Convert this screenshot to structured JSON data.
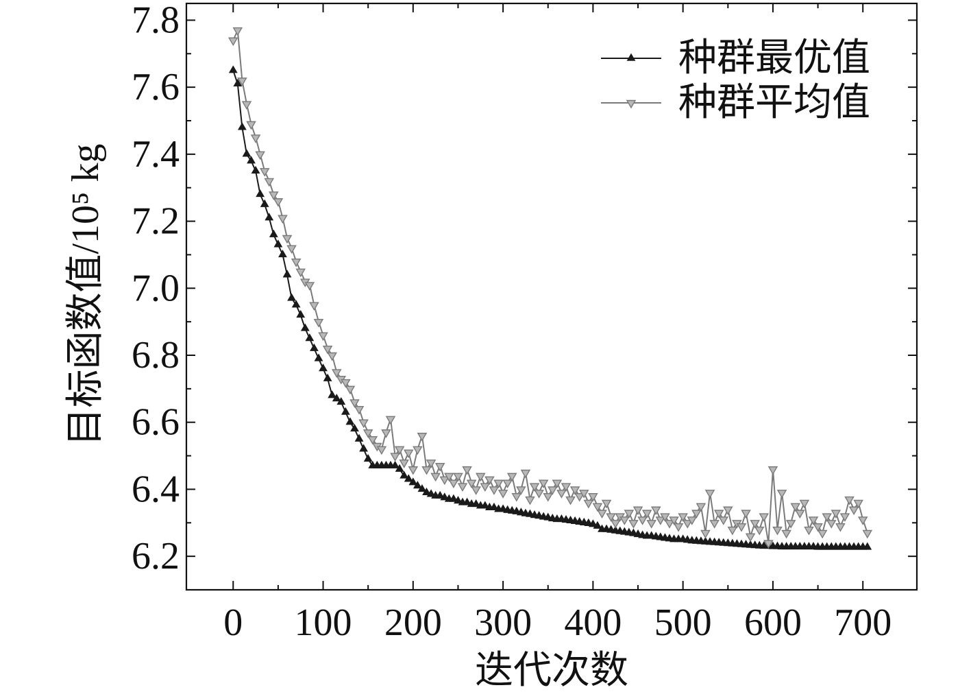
{
  "chart_data": {
    "type": "line",
    "xlabel": "迭代次数",
    "ylabel": "目标函数值/10⁵ kg",
    "xlim": [
      -52,
      760
    ],
    "ylim": [
      6.1,
      7.85
    ],
    "xticks": [
      "0",
      "100",
      "200",
      "300",
      "400",
      "500",
      "600",
      "700"
    ],
    "yticks": [
      "6.2",
      "6.4",
      "6.6",
      "6.8",
      "7.0",
      "7.2",
      "7.4",
      "7.6",
      "7.8"
    ],
    "grid": false,
    "legend": "top-right",
    "x": [
      0,
      5,
      10,
      15,
      20,
      25,
      30,
      35,
      40,
      45,
      50,
      55,
      60,
      65,
      70,
      75,
      80,
      85,
      90,
      95,
      100,
      105,
      110,
      115,
      120,
      125,
      130,
      135,
      140,
      145,
      150,
      155,
      160,
      165,
      170,
      175,
      180,
      185,
      190,
      195,
      200,
      205,
      210,
      215,
      220,
      225,
      230,
      235,
      240,
      245,
      250,
      255,
      260,
      265,
      270,
      275,
      280,
      285,
      290,
      295,
      300,
      305,
      310,
      315,
      320,
      325,
      330,
      335,
      340,
      345,
      350,
      355,
      360,
      365,
      370,
      375,
      380,
      385,
      390,
      395,
      400,
      405,
      410,
      415,
      420,
      425,
      430,
      435,
      440,
      445,
      450,
      455,
      460,
      465,
      470,
      475,
      480,
      485,
      490,
      495,
      500,
      505,
      510,
      515,
      520,
      525,
      530,
      535,
      540,
      545,
      550,
      555,
      560,
      565,
      570,
      575,
      580,
      585,
      590,
      595,
      600,
      605,
      610,
      615,
      620,
      625,
      630,
      635,
      640,
      645,
      650,
      655,
      660,
      665,
      670,
      675,
      680,
      685,
      690,
      695,
      700,
      705
    ],
    "series": [
      {
        "name": "种群最优值",
        "color": "#1a1a1a",
        "marker": "triangle-up",
        "marker_fill": "#1a1a1a",
        "values": [
          7.65,
          7.61,
          7.48,
          7.4,
          7.38,
          7.35,
          7.28,
          7.25,
          7.21,
          7.16,
          7.13,
          7.1,
          7.04,
          6.97,
          6.95,
          6.92,
          6.88,
          6.85,
          6.82,
          6.79,
          6.76,
          6.73,
          6.68,
          6.67,
          6.66,
          6.63,
          6.6,
          6.58,
          6.55,
          6.52,
          6.49,
          6.47,
          6.47,
          6.47,
          6.47,
          6.47,
          6.47,
          6.46,
          6.44,
          6.43,
          6.42,
          6.41,
          6.4,
          6.39,
          6.385,
          6.38,
          6.38,
          6.375,
          6.37,
          6.37,
          6.365,
          6.36,
          6.36,
          6.355,
          6.355,
          6.35,
          6.35,
          6.345,
          6.345,
          6.34,
          6.34,
          6.337,
          6.335,
          6.333,
          6.33,
          6.327,
          6.325,
          6.322,
          6.32,
          6.317,
          6.315,
          6.312,
          6.31,
          6.31,
          6.308,
          6.306,
          6.304,
          6.302,
          6.3,
          6.298,
          6.295,
          6.29,
          6.28,
          6.28,
          6.278,
          6.276,
          6.274,
          6.272,
          6.27,
          6.268,
          6.265,
          6.262,
          6.26,
          6.26,
          6.258,
          6.256,
          6.254,
          6.252,
          6.25,
          6.25,
          6.25,
          6.248,
          6.246,
          6.245,
          6.244,
          6.243,
          6.242,
          6.241,
          6.24,
          6.239,
          6.238,
          6.237,
          6.236,
          6.235,
          6.234,
          6.233,
          6.232,
          6.231,
          6.23,
          6.23,
          6.229,
          6.229,
          6.228,
          6.228,
          6.228,
          6.228,
          6.228,
          6.228,
          6.228,
          6.228,
          6.227,
          6.227,
          6.227,
          6.227,
          6.227,
          6.227,
          6.227,
          6.227,
          6.227,
          6.227,
          6.227,
          6.227
        ]
      },
      {
        "name": "种群平均值",
        "color": "#7a7a7a",
        "marker": "triangle-down",
        "marker_fill": "#b8b8b8",
        "values": [
          7.74,
          7.77,
          7.62,
          7.55,
          7.49,
          7.45,
          7.4,
          7.35,
          7.32,
          7.28,
          7.26,
          7.21,
          7.15,
          7.12,
          7.08,
          7.05,
          7.02,
          7.01,
          6.95,
          6.9,
          6.86,
          6.82,
          6.8,
          6.75,
          6.73,
          6.72,
          6.7,
          6.66,
          6.64,
          6.6,
          6.57,
          6.55,
          6.53,
          6.52,
          6.57,
          6.61,
          6.5,
          6.52,
          6.48,
          6.51,
          6.46,
          6.52,
          6.56,
          6.46,
          6.48,
          6.44,
          6.47,
          6.43,
          6.44,
          6.42,
          6.44,
          6.41,
          6.46,
          6.42,
          6.4,
          6.44,
          6.41,
          6.43,
          6.4,
          6.42,
          6.39,
          6.42,
          6.44,
          6.38,
          6.4,
          6.45,
          6.37,
          6.41,
          6.39,
          6.42,
          6.38,
          6.4,
          6.42,
          6.39,
          6.41,
          6.37,
          6.4,
          6.38,
          6.39,
          6.36,
          6.38,
          6.35,
          6.33,
          6.36,
          6.32,
          6.3,
          6.32,
          6.31,
          6.33,
          6.3,
          6.34,
          6.31,
          6.33,
          6.3,
          6.34,
          6.31,
          6.32,
          6.3,
          6.31,
          6.29,
          6.32,
          6.3,
          6.31,
          6.33,
          6.35,
          6.27,
          6.39,
          6.3,
          6.33,
          6.31,
          6.34,
          6.28,
          6.3,
          6.29,
          6.33,
          6.26,
          6.3,
          6.28,
          6.32,
          6.24,
          6.46,
          6.28,
          6.39,
          6.27,
          6.3,
          6.35,
          6.33,
          6.36,
          6.28,
          6.31,
          6.29,
          6.27,
          6.32,
          6.3,
          6.33,
          6.29,
          6.32,
          6.37,
          6.34,
          6.36,
          6.31,
          6.27
        ]
      }
    ]
  }
}
